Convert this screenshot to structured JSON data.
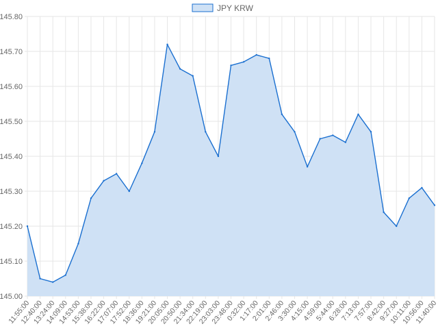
{
  "chart_data": {
    "type": "area",
    "title": "",
    "xlabel": "",
    "ylabel": "",
    "legend_position": "top-center",
    "grid": true,
    "ylim": [
      145.0,
      145.8
    ],
    "y_ticks": [
      "145.00",
      "145.10",
      "145.20",
      "145.30",
      "145.40",
      "145.50",
      "145.60",
      "145.70",
      "145.80"
    ],
    "x_tick_labels": [
      "11:55:00",
      "12:40:00",
      "13:24:00",
      "14:09:00",
      "14:53:00",
      "15:38:00",
      "16:22:00",
      "17:07:00",
      "17:52:00",
      "18:36:00",
      "19:21:00",
      "20:05:00",
      "20:50:00",
      "21:34:00",
      "22:19:00",
      "23:03:00",
      "23:48:00",
      "0:32:00",
      "1:17:00",
      "2:01:00",
      "2:46:00",
      "3:30:00",
      "4:15:00",
      "4:59:00",
      "5:44:00",
      "6:28:00",
      "7:13:00",
      "7:57:00",
      "8:42:00",
      "9:27:00",
      "10:11:00",
      "10:56:00",
      "11:40:00"
    ],
    "colors": {
      "line": "#1a6fd0",
      "fill": "#cfe1f5",
      "grid": "#e6e6e6"
    },
    "series": [
      {
        "name": "JPY KRW",
        "x": [
          "11:55:00",
          "12:40:00",
          "13:24:00",
          "14:09:00",
          "14:53:00",
          "15:38:00",
          "16:22:00",
          "17:07:00",
          "17:52:00",
          "18:36:00",
          "19:21:00",
          "20:05:00",
          "20:50:00",
          "21:34:00",
          "22:19:00",
          "23:03:00",
          "23:48:00",
          "0:32:00",
          "1:17:00",
          "2:01:00",
          "2:46:00",
          "3:30:00",
          "4:15:00",
          "4:59:00",
          "5:44:00",
          "6:28:00",
          "7:13:00",
          "7:57:00",
          "8:42:00",
          "9:27:00",
          "10:11:00",
          "10:56:00",
          "11:40:00"
        ],
        "values": [
          145.2,
          145.05,
          145.04,
          145.06,
          145.15,
          145.28,
          145.33,
          145.35,
          145.3,
          145.38,
          145.47,
          145.72,
          145.65,
          145.63,
          145.47,
          145.4,
          145.66,
          145.67,
          145.69,
          145.68,
          145.52,
          145.47,
          145.37,
          145.45,
          145.46,
          145.44,
          145.52,
          145.47,
          145.24,
          145.2,
          145.28,
          145.31,
          145.26
        ]
      }
    ]
  }
}
